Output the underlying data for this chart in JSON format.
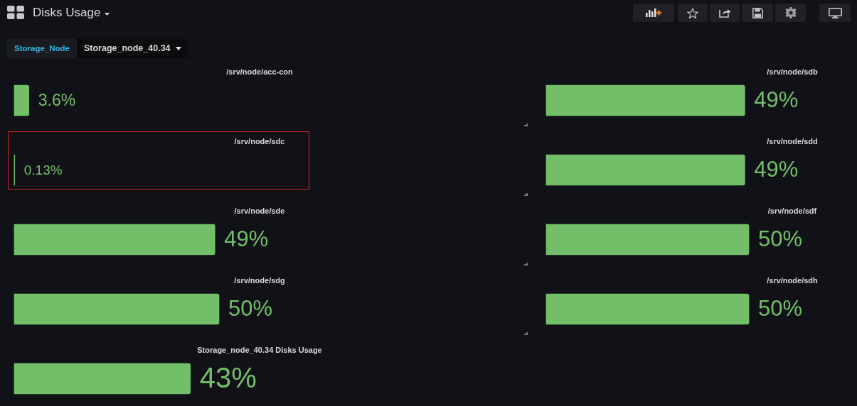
{
  "chart_data": [
    {
      "type": "other",
      "title": "Disks Usage",
      "annotations": [
        "Storage_Node",
        "Storage_node_40.34"
      ]
    },
    {
      "type": "bar",
      "orientation": "horizontal",
      "categories": [
        "/srv/node/acc-con",
        "/srv/node/sdc",
        "/srv/node/sde",
        "/srv/node/sdg",
        "Storage_node_40.34 Disks Usage"
      ],
      "values": [
        3.6,
        0.13,
        49,
        50,
        43
      ],
      "value_labels": [
        "3.6%",
        "0.13%",
        "49%",
        "50%",
        "43%"
      ],
      "color": "#73bf69",
      "tick_labels": "y"
    },
    {
      "type": "bar",
      "orientation": "horizontal",
      "categories": [
        "/srv/node/sdb",
        "/srv/node/sdd",
        "/srv/node/sdf",
        "/srv/node/sdh"
      ],
      "values": [
        49,
        49,
        50,
        50
      ],
      "value_labels": [
        "49%",
        "49%",
        "50%",
        "50%"
      ],
      "color": "#73bf69",
      "tick_labels": "y"
    }
  ]
}
